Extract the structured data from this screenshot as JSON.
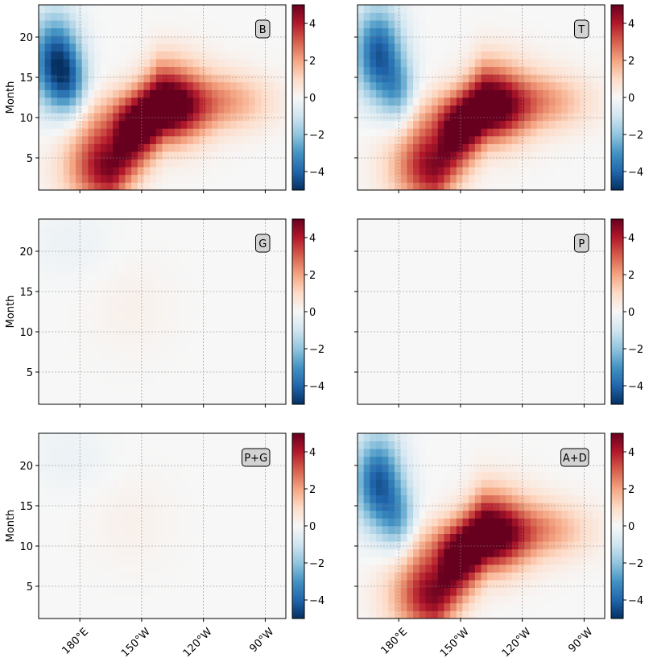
{
  "figure": {
    "colormap": "RdBu_r",
    "cmap_stops": [
      "#053061",
      "#2166ac",
      "#4393c3",
      "#92c5de",
      "#d1e5f0",
      "#f7f7f7",
      "#fddbc7",
      "#f4a582",
      "#d6604d",
      "#b2182b",
      "#67001f"
    ],
    "contour_color": "#000000",
    "grid_color": "#888888",
    "label_box_fill": "#d3d3d3"
  },
  "chart_data": [
    {
      "type": "heatmap",
      "panel": "B",
      "row": 0,
      "col": 0,
      "ylabel": "Month",
      "show_xticklabels": false,
      "show_yticklabels": true,
      "xlim": [
        160,
        280
      ],
      "ylim": [
        1,
        24
      ],
      "xticks": [
        180,
        210,
        240,
        270
      ],
      "xticklabels": [
        "180°E",
        "150°W",
        "120°W",
        "90°W"
      ],
      "yticks": [
        5,
        10,
        15,
        20
      ],
      "colorbar": {
        "vmin": -5,
        "vmax": 5,
        "ticks": [
          -4,
          -2,
          0,
          2,
          4
        ]
      },
      "grid": true,
      "fields": [
        {
          "type": "pos",
          "lon0": 195,
          "lon1": 220,
          "m0": 4,
          "m1": 12,
          "sx": 14,
          "sy": 3.5,
          "amp": 4.8
        },
        {
          "type": "pos",
          "lon0": 205,
          "lon1": 250,
          "m0": 10,
          "m1": 12,
          "sx": 16,
          "sy": 2.5,
          "amp": 2.0
        },
        {
          "type": "neg",
          "lon": 168,
          "m": 17,
          "sx": 8,
          "sy": 4,
          "amp": -4.5
        },
        {
          "type": "neg",
          "lon": 176,
          "m": 14,
          "sx": 6,
          "sy": 3,
          "amp": -2.0
        }
      ]
    },
    {
      "type": "heatmap",
      "panel": "T",
      "row": 0,
      "col": 1,
      "ylabel": "",
      "show_xticklabels": false,
      "show_yticklabels": false,
      "xlim": [
        160,
        280
      ],
      "ylim": [
        1,
        24
      ],
      "xticks": [
        180,
        210,
        240,
        270
      ],
      "xticklabels": [
        "180°E",
        "150°W",
        "120°W",
        "90°W"
      ],
      "yticks": [
        5,
        10,
        15,
        20
      ],
      "colorbar": {
        "vmin": -5,
        "vmax": 5,
        "ticks": [
          -4,
          -2,
          0,
          2,
          4
        ]
      },
      "grid": true,
      "fields": [
        {
          "type": "pos",
          "lon0": 198,
          "lon1": 222,
          "m0": 4,
          "m1": 12,
          "sx": 14,
          "sy": 3.5,
          "amp": 4.6
        },
        {
          "type": "pos",
          "lon0": 208,
          "lon1": 250,
          "m0": 10,
          "m1": 12,
          "sx": 16,
          "sy": 2.5,
          "amp": 2.0
        },
        {
          "type": "neg",
          "lon": 170,
          "m": 18,
          "sx": 8,
          "sy": 4,
          "amp": -4.2
        },
        {
          "type": "neg",
          "lon": 180,
          "m": 13,
          "sx": 6,
          "sy": 3,
          "amp": -2.2
        }
      ]
    },
    {
      "type": "heatmap",
      "panel": "G",
      "row": 1,
      "col": 0,
      "ylabel": "Month",
      "show_xticklabels": false,
      "show_yticklabels": true,
      "xlim": [
        160,
        280
      ],
      "ylim": [
        1,
        24
      ],
      "xticks": [
        180,
        210,
        240,
        270
      ],
      "xticklabels": [
        "180°E",
        "150°W",
        "120°W",
        "90°W"
      ],
      "yticks": [
        5,
        10,
        15,
        20
      ],
      "colorbar": {
        "vmin": -5,
        "vmax": 5,
        "ticks": [
          -4,
          -2,
          0,
          2,
          4
        ]
      },
      "grid": true,
      "fields": [
        {
          "type": "neg",
          "lon": 175,
          "m": 21,
          "sx": 14,
          "sy": 3,
          "amp": -0.3
        },
        {
          "type": "pos",
          "lon": 205,
          "m": 13,
          "sx": 14,
          "sy": 4,
          "amp": 0.25
        }
      ]
    },
    {
      "type": "heatmap",
      "panel": "P",
      "row": 1,
      "col": 1,
      "ylabel": "",
      "show_xticklabels": false,
      "show_yticklabels": false,
      "xlim": [
        160,
        280
      ],
      "ylim": [
        1,
        24
      ],
      "xticks": [
        180,
        210,
        240,
        270
      ],
      "xticklabels": [
        "180°E",
        "150°W",
        "120°W",
        "90°W"
      ],
      "yticks": [
        5,
        10,
        15,
        20
      ],
      "colorbar": {
        "vmin": -5,
        "vmax": 5,
        "ticks": [
          -4,
          -2,
          0,
          2,
          4
        ]
      },
      "grid": true,
      "fields": []
    },
    {
      "type": "heatmap",
      "panel": "P+G",
      "row": 2,
      "col": 0,
      "ylabel": "Month",
      "show_xticklabels": true,
      "show_yticklabels": true,
      "xlim": [
        160,
        280
      ],
      "ylim": [
        1,
        24
      ],
      "xticks": [
        180,
        210,
        240,
        270
      ],
      "xticklabels": [
        "180°E",
        "150°W",
        "120°W",
        "90°W"
      ],
      "yticks": [
        5,
        10,
        15,
        20
      ],
      "colorbar": {
        "vmin": -5,
        "vmax": 5,
        "ticks": [
          -4,
          -2,
          0,
          2,
          4
        ]
      },
      "grid": true,
      "fields": [
        {
          "type": "neg",
          "lon": 175,
          "m": 21,
          "sx": 14,
          "sy": 3,
          "amp": -0.3
        },
        {
          "type": "pos",
          "lon": 205,
          "m": 13,
          "sx": 14,
          "sy": 4,
          "amp": 0.25
        }
      ]
    },
    {
      "type": "heatmap",
      "panel": "A+D",
      "row": 2,
      "col": 1,
      "ylabel": "",
      "show_xticklabels": true,
      "show_yticklabels": false,
      "xlim": [
        160,
        280
      ],
      "ylim": [
        1,
        24
      ],
      "xticks": [
        180,
        210,
        240,
        270
      ],
      "xticklabels": [
        "180°E",
        "150°W",
        "120°W",
        "90°W"
      ],
      "yticks": [
        5,
        10,
        15,
        20
      ],
      "colorbar": {
        "vmin": -5,
        "vmax": 5,
        "ticks": [
          -4,
          -2,
          0,
          2,
          4
        ]
      },
      "grid": true,
      "fields": [
        {
          "type": "pos",
          "lon0": 198,
          "lon1": 222,
          "m0": 4,
          "m1": 12,
          "sx": 14,
          "sy": 3.5,
          "amp": 4.7
        },
        {
          "type": "pos",
          "lon0": 208,
          "lon1": 250,
          "m0": 10,
          "m1": 12,
          "sx": 16,
          "sy": 2.5,
          "amp": 2.0
        },
        {
          "type": "neg",
          "lon": 170,
          "m": 18,
          "sx": 8,
          "sy": 4,
          "amp": -4.2
        },
        {
          "type": "neg",
          "lon": 180,
          "m": 13,
          "sx": 6,
          "sy": 3,
          "amp": -2.2
        }
      ]
    }
  ]
}
